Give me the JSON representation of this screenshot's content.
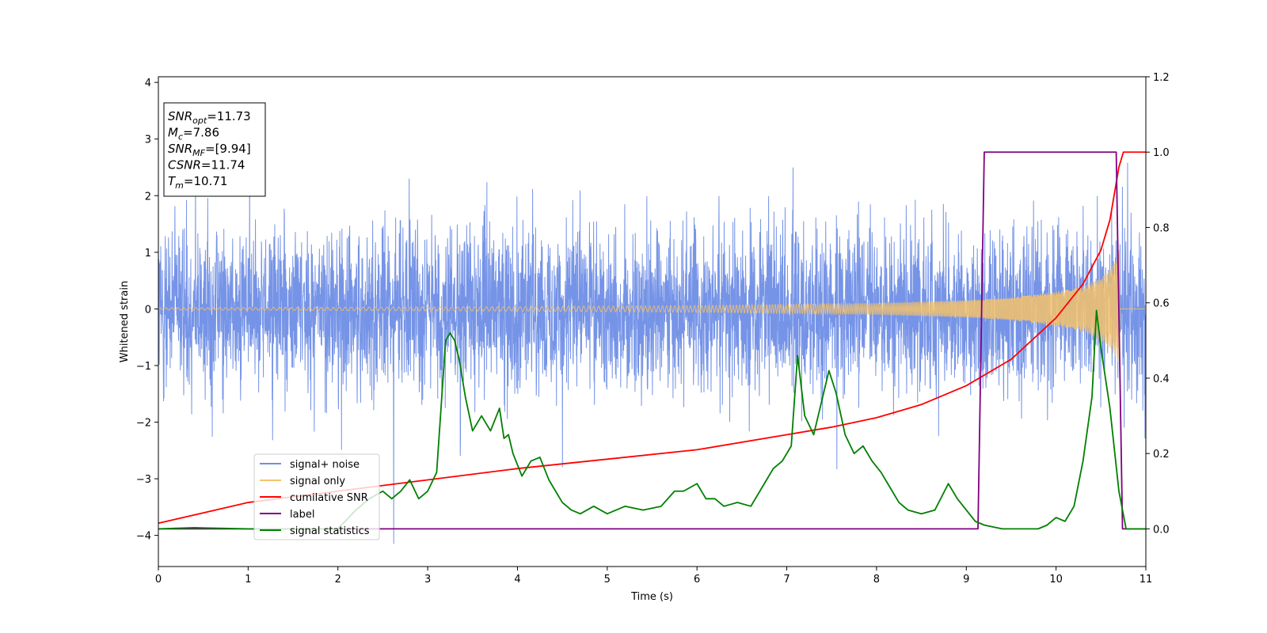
{
  "chart_data": {
    "type": "line",
    "xlabel": "Time (s)",
    "ylabel": "Whitened strain",
    "xlim": [
      0,
      11
    ],
    "ylim_left": [
      -4.55,
      4.1
    ],
    "ylim_right": [
      -0.1,
      1.2
    ],
    "x_ticks": [
      "0",
      "1",
      "2",
      "3",
      "4",
      "5",
      "6",
      "7",
      "8",
      "9",
      "10",
      "11"
    ],
    "y_left_ticks": [
      "4",
      "3",
      "2",
      "1",
      "0",
      "−1",
      "−2",
      "−3",
      "−4"
    ],
    "y_left_tick_values": [
      4,
      3,
      2,
      1,
      0,
      -1,
      -2,
      -3,
      -4
    ],
    "y_right_ticks": [
      "1.2",
      "1.0",
      "0.8",
      "0.6",
      "0.4",
      "0.2",
      "0.0"
    ],
    "y_right_tick_values": [
      1.2,
      1.0,
      0.8,
      0.6,
      0.4,
      0.2,
      0.0
    ],
    "annotation": {
      "lines": [
        {
          "main": "SNR",
          "sub": "opt",
          "rest": "=11.73"
        },
        {
          "main": "M",
          "sub": "c",
          "rest": "=7.86"
        },
        {
          "main": "SNR",
          "sub": "MF",
          "rest": "=[9.94]"
        },
        {
          "main": "CSNR",
          "sub": "",
          "rest": "=11.74"
        },
        {
          "main": "T",
          "sub": "m",
          "rest": "=10.71"
        }
      ]
    },
    "legend_position": "lower-left",
    "legend": [
      {
        "label": "signal+ noise",
        "color": "#6f8ee6"
      },
      {
        "label": "signal only",
        "color": "#f5c26b"
      },
      {
        "label": "cumilative SNR",
        "color": "#ff0000"
      },
      {
        "label": "label",
        "color": "#800080"
      },
      {
        "label": "signal statistics",
        "color": "#008000"
      }
    ],
    "series": [
      {
        "name": "signal+ noise",
        "axis": "left",
        "color": "#6f8ee6",
        "kind": "noise_band",
        "x_range": [
          0,
          11
        ],
        "typical_range": [
          -2.2,
          2.2
        ],
        "extreme_range": [
          -4.15,
          3.72
        ]
      },
      {
        "name": "signal only",
        "axis": "left",
        "color": "#f5c26b",
        "kind": "chirp_envelope",
        "x_range": [
          0,
          10.71
        ],
        "envelope_x": [
          0,
          2,
          4,
          6,
          7,
          8,
          9,
          9.5,
          10,
          10.3,
          10.5,
          10.6,
          10.68,
          10.71
        ],
        "envelope_y": [
          0.02,
          0.03,
          0.04,
          0.06,
          0.08,
          0.1,
          0.15,
          0.2,
          0.3,
          0.4,
          0.55,
          0.7,
          0.9,
          1.1
        ]
      },
      {
        "name": "cumilative SNR",
        "axis": "right",
        "color": "#ff0000",
        "x": [
          0,
          1,
          2,
          3,
          4,
          5,
          6,
          7,
          7.5,
          8,
          8.5,
          9,
          9.5,
          10,
          10.3,
          10.5,
          10.6,
          10.7,
          10.75,
          11
        ],
        "y": [
          0.015,
          0.07,
          0.1,
          0.13,
          0.16,
          0.185,
          0.21,
          0.25,
          0.27,
          0.295,
          0.33,
          0.38,
          0.45,
          0.56,
          0.65,
          0.74,
          0.82,
          0.96,
          1.0,
          1.0
        ]
      },
      {
        "name": "label",
        "axis": "right",
        "color": "#800080",
        "x": [
          0,
          9.13,
          9.2,
          10.67,
          10.74,
          11
        ],
        "y": [
          0,
          0,
          1.0,
          1.0,
          0,
          0
        ]
      },
      {
        "name": "signal statistics",
        "axis": "right",
        "color": "#008000",
        "x": [
          0,
          0.4,
          1.0,
          1.6,
          2.0,
          2.2,
          2.35,
          2.5,
          2.6,
          2.7,
          2.8,
          2.9,
          3.0,
          3.1,
          3.2,
          3.25,
          3.3,
          3.35,
          3.42,
          3.5,
          3.6,
          3.7,
          3.8,
          3.85,
          3.9,
          3.95,
          4.05,
          4.15,
          4.25,
          4.35,
          4.5,
          4.6,
          4.7,
          4.85,
          5.0,
          5.2,
          5.4,
          5.6,
          5.75,
          5.85,
          6.0,
          6.1,
          6.2,
          6.3,
          6.45,
          6.6,
          6.75,
          6.85,
          6.95,
          7.05,
          7.12,
          7.2,
          7.3,
          7.4,
          7.47,
          7.55,
          7.65,
          7.75,
          7.85,
          7.95,
          8.05,
          8.15,
          8.25,
          8.35,
          8.5,
          8.65,
          8.8,
          8.9,
          9.0,
          9.1,
          9.2,
          9.4,
          9.6,
          9.8,
          9.9,
          10.0,
          10.1,
          10.2,
          10.3,
          10.4,
          10.45,
          10.5,
          10.6,
          10.7,
          10.78,
          10.9,
          11.0
        ],
        "y": [
          0.0,
          0.003,
          0.0,
          0.0,
          0.0,
          0.05,
          0.08,
          0.1,
          0.08,
          0.1,
          0.13,
          0.08,
          0.1,
          0.15,
          0.5,
          0.52,
          0.5,
          0.45,
          0.35,
          0.26,
          0.3,
          0.26,
          0.32,
          0.24,
          0.25,
          0.2,
          0.14,
          0.18,
          0.19,
          0.13,
          0.07,
          0.05,
          0.04,
          0.06,
          0.04,
          0.06,
          0.05,
          0.06,
          0.1,
          0.1,
          0.12,
          0.08,
          0.08,
          0.06,
          0.07,
          0.06,
          0.12,
          0.16,
          0.18,
          0.22,
          0.46,
          0.3,
          0.25,
          0.35,
          0.42,
          0.36,
          0.25,
          0.2,
          0.22,
          0.18,
          0.15,
          0.11,
          0.07,
          0.05,
          0.04,
          0.05,
          0.12,
          0.08,
          0.05,
          0.02,
          0.01,
          0.0,
          0.0,
          0.0,
          0.01,
          0.03,
          0.02,
          0.06,
          0.18,
          0.35,
          0.58,
          0.48,
          0.32,
          0.1,
          0.0,
          0.0,
          0.0
        ]
      }
    ]
  }
}
